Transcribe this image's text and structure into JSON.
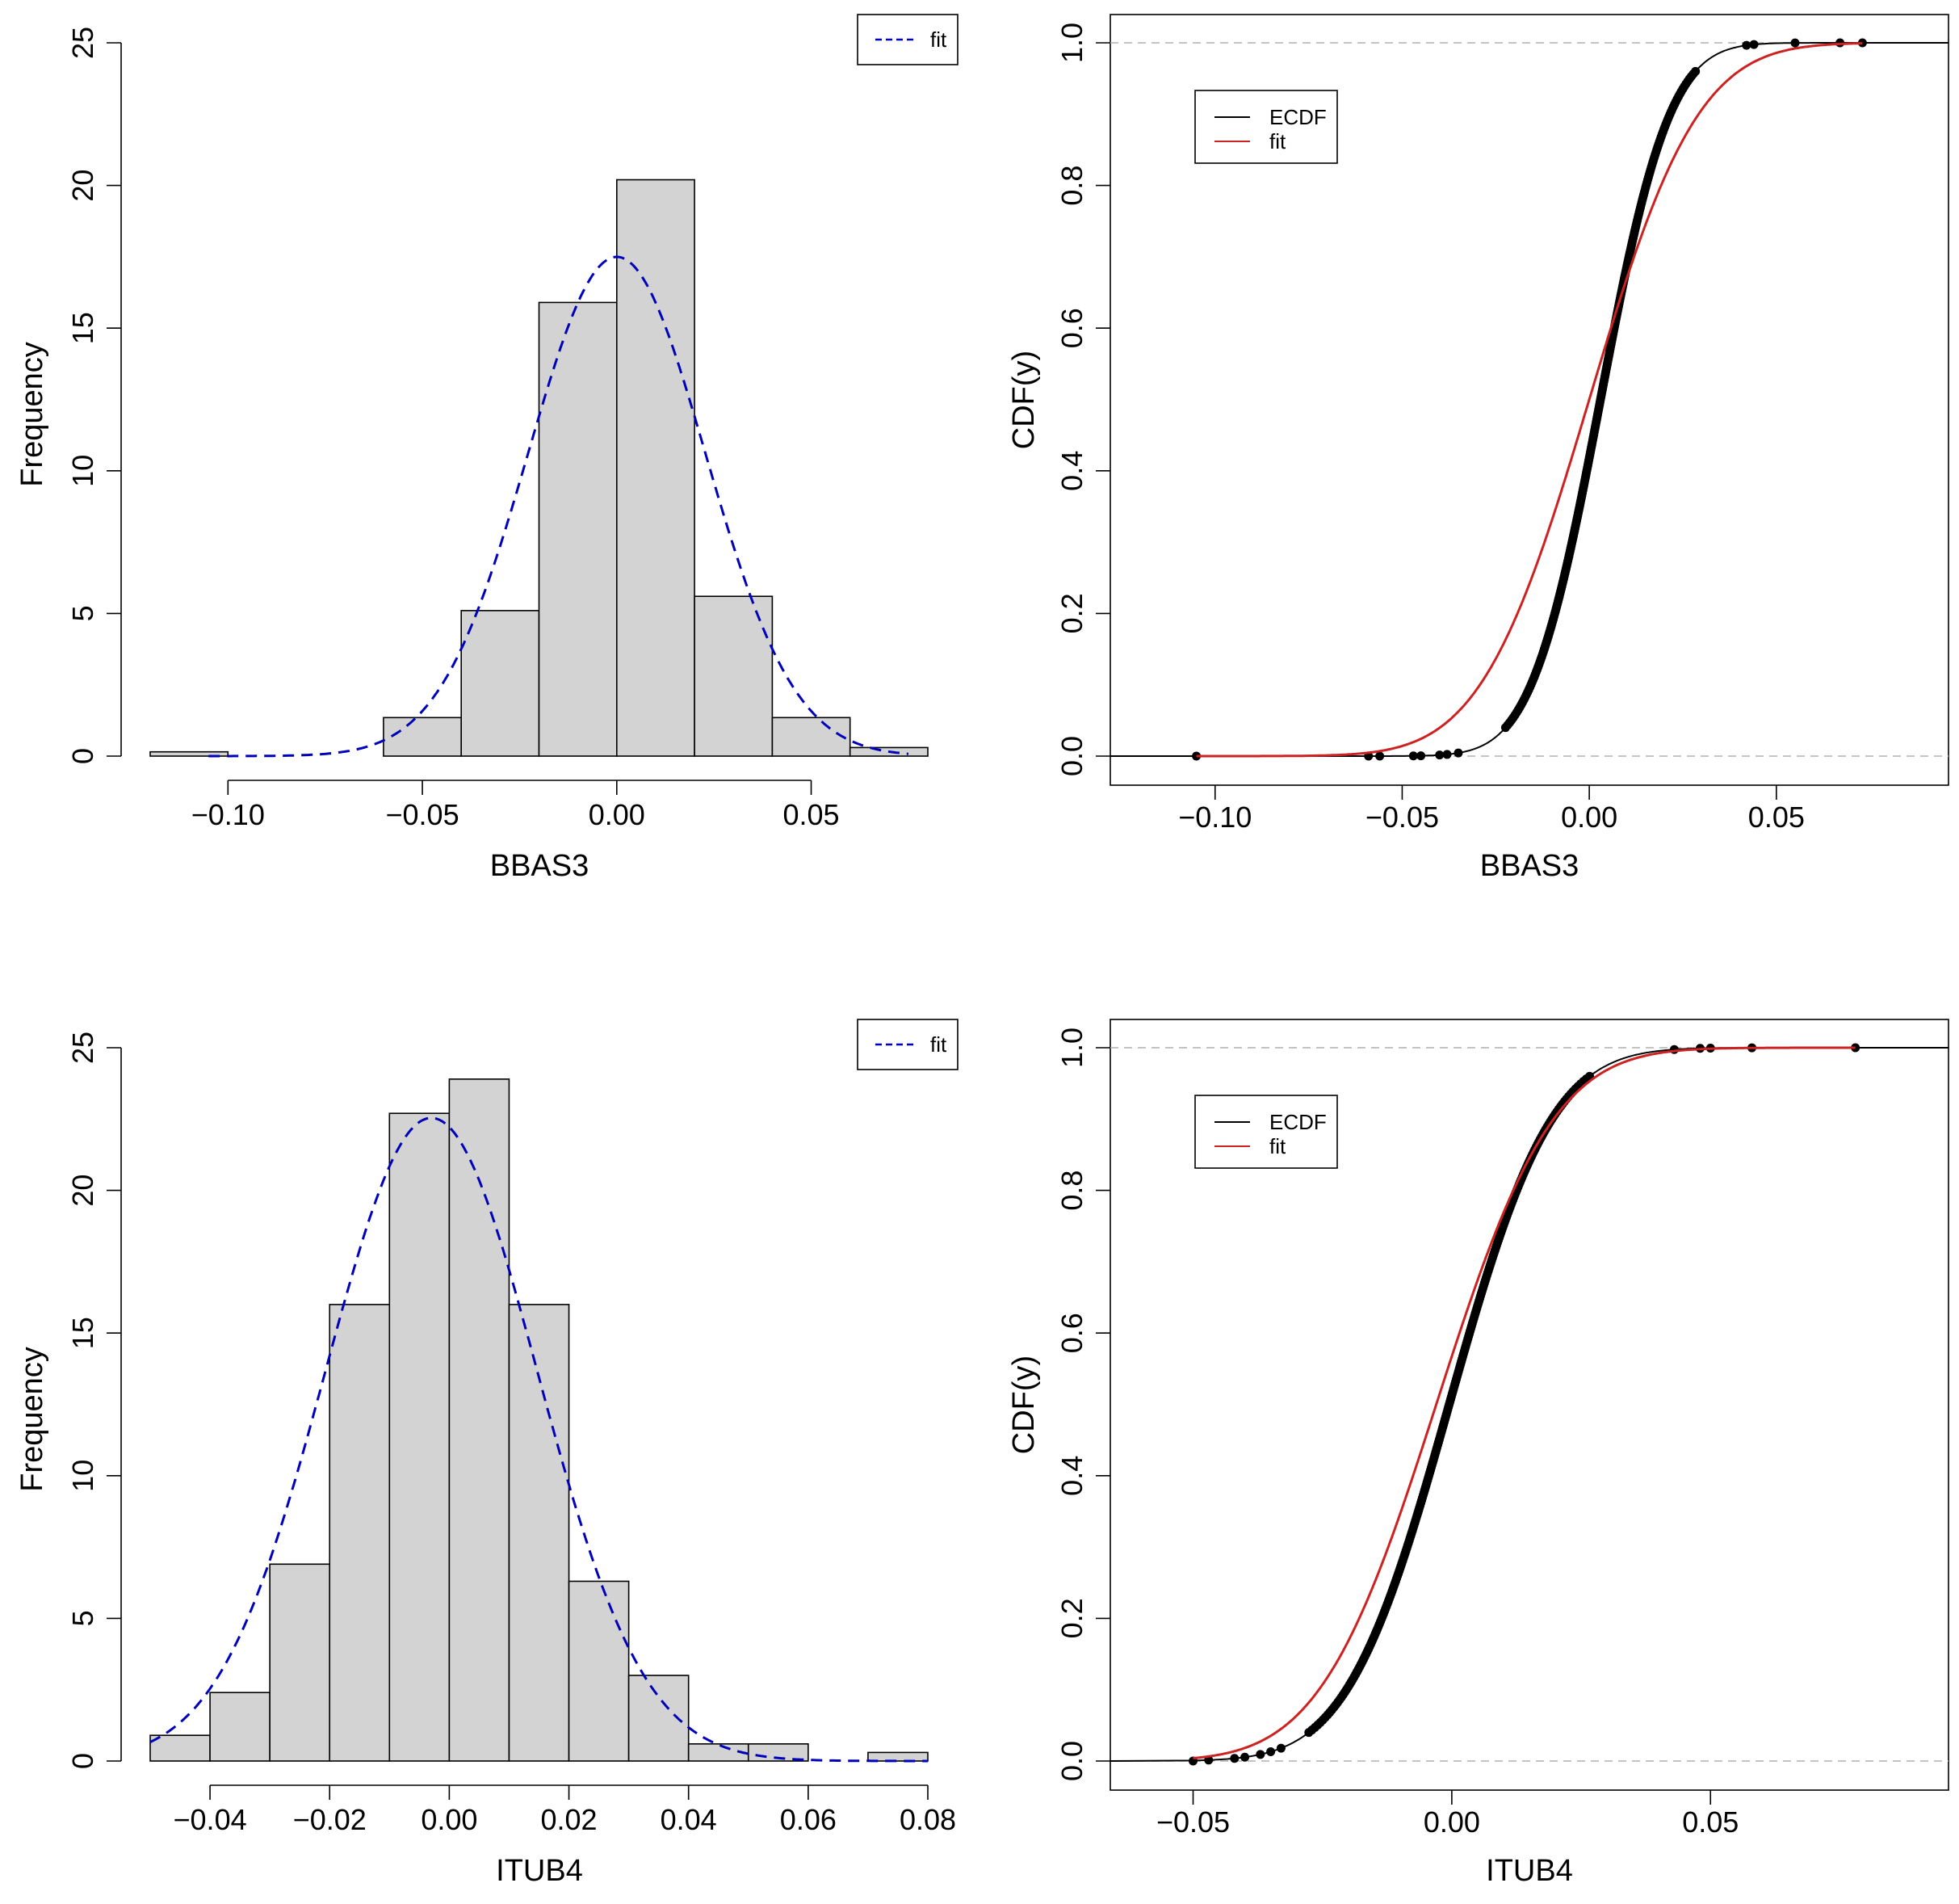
{
  "chart_data": [
    {
      "type": "bar",
      "panel": "histogram",
      "xlabel": "BBAS3",
      "ylabel": "Frequency",
      "xlim": [
        -0.12,
        0.08
      ],
      "ylim": [
        0,
        25
      ],
      "x_ticks": [
        -0.1,
        -0.05,
        0.0,
        0.05
      ],
      "x_tick_labels": [
        "−0.10",
        "−0.05",
        "0.00",
        "0.05"
      ],
      "y_ticks": [
        0,
        5,
        10,
        15,
        20,
        25
      ],
      "y_tick_labels": [
        "0",
        "5",
        "10",
        "15",
        "20",
        "25"
      ],
      "bins": [
        {
          "x0": -0.12,
          "x1": -0.1,
          "value": 0.15
        },
        {
          "x0": -0.06,
          "x1": -0.04,
          "value": 1.35
        },
        {
          "x0": -0.04,
          "x1": -0.02,
          "value": 5.1
        },
        {
          "x0": -0.02,
          "x1": 0.0,
          "value": 15.9
        },
        {
          "x0": 0.0,
          "x1": 0.02,
          "value": 20.2
        },
        {
          "x0": 0.02,
          "x1": 0.04,
          "value": 5.6
        },
        {
          "x0": 0.04,
          "x1": 0.06,
          "value": 1.35
        },
        {
          "x0": 0.06,
          "x1": 0.08,
          "value": 0.3
        }
      ],
      "fit": {
        "mean": 0.0,
        "sd": 0.0228,
        "x_from": -0.105,
        "x_to": 0.075,
        "color": "#0000bb"
      },
      "legend": {
        "entries": [
          "fit"
        ],
        "position": "top-right"
      }
    },
    {
      "type": "line",
      "panel": "ecdf",
      "xlabel": "BBAS3",
      "ylabel": "CDF(y)",
      "xlim": [
        -0.128,
        0.096
      ],
      "ylim": [
        0,
        1
      ],
      "x_ticks": [
        -0.1,
        -0.05,
        0.0,
        0.05
      ],
      "x_tick_labels": [
        "−0.10",
        "−0.05",
        "0.00",
        "0.05"
      ],
      "y_ticks": [
        0.0,
        0.2,
        0.4,
        0.6,
        0.8,
        1.0
      ],
      "y_tick_labels": [
        "0.0",
        "0.2",
        "0.4",
        "0.6",
        "0.8",
        "1.0"
      ],
      "reference_lines": [
        0,
        1
      ],
      "ecdf": {
        "mean": 0.003,
        "sd": 0.0145,
        "x_min": -0.105,
        "x_max": 0.073,
        "color": "#000000",
        "tail_points": [
          -0.105,
          -0.059,
          -0.056,
          -0.047,
          -0.045,
          -0.04,
          -0.038,
          -0.035,
          0.042,
          0.044,
          0.055,
          0.067,
          0.073
        ]
      },
      "fit": {
        "mean": 0.0,
        "sd": 0.0228,
        "x_from": -0.105,
        "x_to": 0.073,
        "color": "#cc2222"
      },
      "legend": {
        "entries": [
          "ECDF",
          "fit"
        ],
        "position": "top-left"
      }
    },
    {
      "type": "bar",
      "panel": "histogram",
      "xlabel": "ITUB4",
      "ylabel": "Frequency",
      "xlim": [
        -0.05,
        0.08
      ],
      "ylim": [
        0,
        25
      ],
      "x_ticks": [
        -0.04,
        -0.02,
        0.0,
        0.02,
        0.04,
        0.06,
        0.08
      ],
      "x_tick_labels": [
        "−0.04",
        "−0.02",
        "0.00",
        "0.02",
        "0.04",
        "0.06",
        "0.08"
      ],
      "y_ticks": [
        0,
        5,
        10,
        15,
        20,
        25
      ],
      "y_tick_labels": [
        "0",
        "5",
        "10",
        "15",
        "20",
        "25"
      ],
      "bins": [
        {
          "x0": -0.05,
          "x1": -0.04,
          "value": 0.9
        },
        {
          "x0": -0.04,
          "x1": -0.03,
          "value": 2.4
        },
        {
          "x0": -0.03,
          "x1": -0.02,
          "value": 6.9
        },
        {
          "x0": -0.02,
          "x1": -0.01,
          "value": 16.0
        },
        {
          "x0": -0.01,
          "x1": 0.0,
          "value": 22.7
        },
        {
          "x0": 0.0,
          "x1": 0.01,
          "value": 23.9
        },
        {
          "x0": 0.01,
          "x1": 0.02,
          "value": 16.0
        },
        {
          "x0": 0.02,
          "x1": 0.03,
          "value": 6.3
        },
        {
          "x0": 0.03,
          "x1": 0.04,
          "value": 3.0
        },
        {
          "x0": 0.04,
          "x1": 0.05,
          "value": 0.6
        },
        {
          "x0": 0.05,
          "x1": 0.06,
          "value": 0.6
        },
        {
          "x0": 0.07,
          "x1": 0.08,
          "value": 0.3
        }
      ],
      "fit": {
        "mean": -0.003,
        "sd": 0.0177,
        "x_from": -0.05,
        "x_to": 0.08,
        "color": "#0000bb"
      },
      "legend": {
        "entries": [
          "fit"
        ],
        "position": "top-right"
      }
    },
    {
      "type": "line",
      "panel": "ecdf",
      "xlabel": "ITUB4",
      "ylabel": "CDF(y)",
      "xlim": [
        -0.066,
        0.096
      ],
      "ylim": [
        0,
        1
      ],
      "x_ticks": [
        -0.05,
        0.0,
        0.05
      ],
      "x_tick_labels": [
        "−0.05",
        "0.00",
        "0.05"
      ],
      "y_ticks": [
        0.0,
        0.2,
        0.4,
        0.6,
        0.8,
        1.0
      ],
      "y_tick_labels": [
        "0.0",
        "0.2",
        "0.4",
        "0.6",
        "0.8",
        "1.0"
      ],
      "reference_lines": [
        0,
        1
      ],
      "ecdf": {
        "mean": -0.0005,
        "sd": 0.0155,
        "x_min": -0.05,
        "x_max": 0.078,
        "color": "#000000",
        "tail_points": [
          -0.05,
          -0.047,
          -0.042,
          -0.04,
          -0.037,
          -0.035,
          -0.033,
          0.043,
          0.048,
          0.05,
          0.058,
          0.078
        ]
      },
      "fit": {
        "mean": -0.003,
        "sd": 0.0177,
        "x_from": -0.05,
        "x_to": 0.078,
        "color": "#cc2222"
      },
      "legend": {
        "entries": [
          "ECDF",
          "fit"
        ],
        "position": "top-left"
      }
    }
  ]
}
